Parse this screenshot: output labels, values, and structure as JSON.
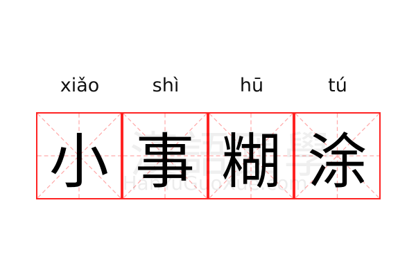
{
  "word": [
    {
      "char": "小",
      "pinyin": "xiǎo"
    },
    {
      "char": "事",
      "pinyin": "shì"
    },
    {
      "char": "糊",
      "pinyin": "hū"
    },
    {
      "char": "涂",
      "pinyin": "tú"
    }
  ],
  "watermark": {
    "logo_chars": "漢語國學",
    "site": "HanYuGuoXue.com"
  },
  "colors": {
    "grid_border": "#ff2222",
    "guide_lines": "#ffaaaa",
    "text": "#000000"
  }
}
